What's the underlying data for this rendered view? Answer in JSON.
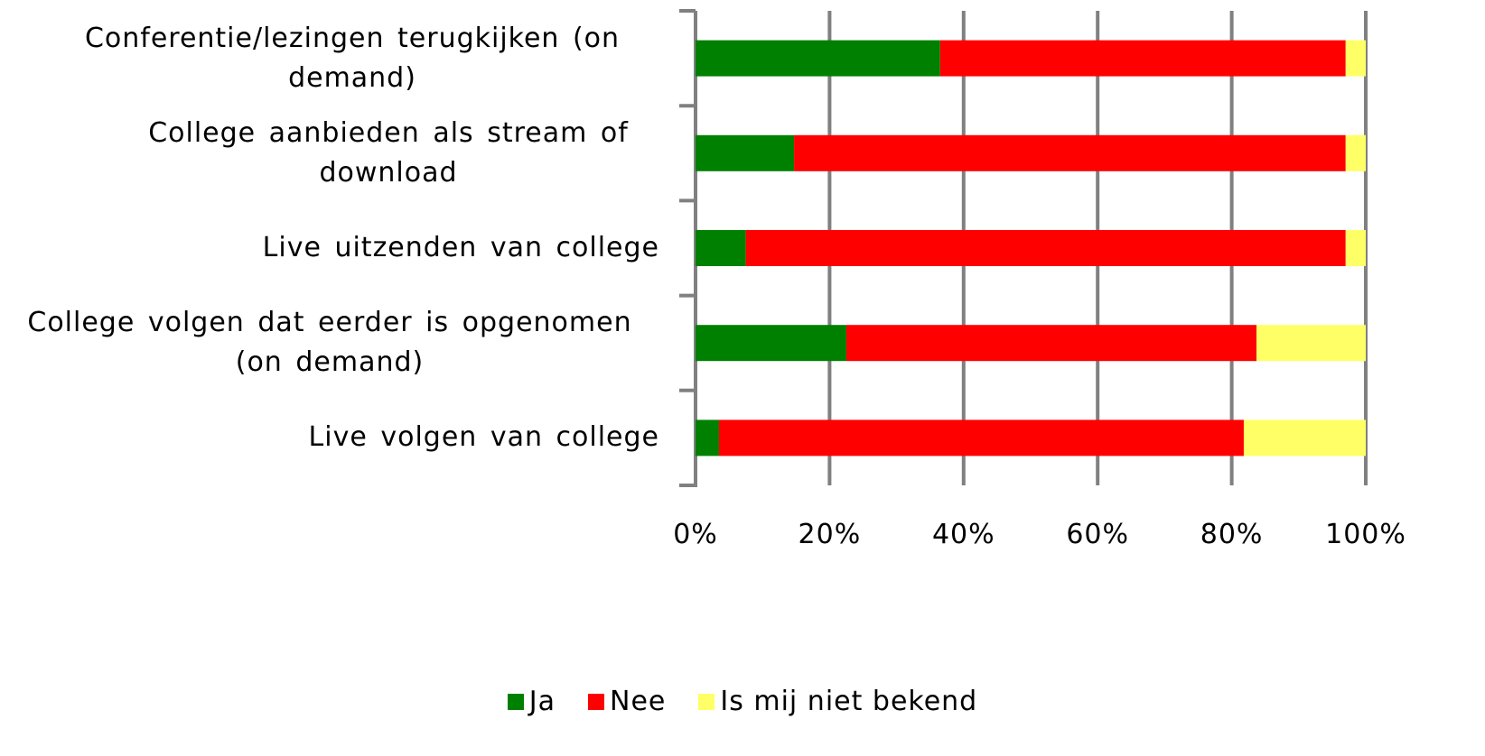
{
  "chart_data": {
    "type": "stacked_barh",
    "categories": [
      "Conferentie/lezingen terugkijken (on demand)",
      "College aanbieden als stream of download",
      "Live uitzenden van college",
      "College volgen dat eerder is opgenomen (on demand)",
      "Live volgen van college"
    ],
    "series": [
      {
        "name": "Ja",
        "color": "#008000",
        "values": [
          36.5,
          14.7,
          7.5,
          22.5,
          3.5
        ]
      },
      {
        "name": "Nee",
        "color": "#ff0000",
        "values": [
          60.5,
          82.3,
          89.5,
          61.2,
          78.3
        ]
      },
      {
        "name": "Is mij niet bekend",
        "color": "#ffff66",
        "values": [
          3,
          3,
          3,
          16.3,
          18.2
        ]
      }
    ],
    "xlim": [
      0,
      100
    ],
    "xticks": [
      {
        "value": 0,
        "label": "0%"
      },
      {
        "value": 20,
        "label": "20%"
      },
      {
        "value": 40,
        "label": "40%"
      },
      {
        "value": 60,
        "label": "60%"
      },
      {
        "value": 80,
        "label": "80%"
      },
      {
        "value": 100,
        "label": "100%"
      }
    ],
    "grid": true,
    "legend": "bottom"
  }
}
